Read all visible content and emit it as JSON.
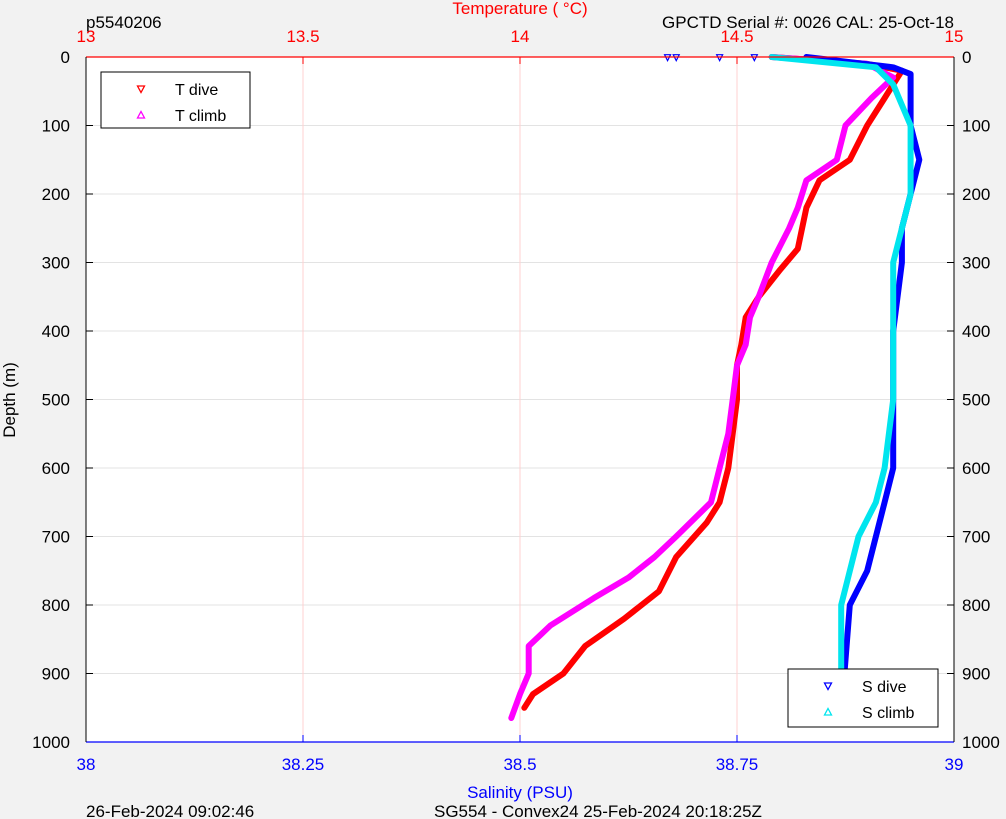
{
  "header": {
    "profile_id": "p5540206",
    "serial_info": "GPCTD Serial #: 0026 CAL: 25-Oct-18"
  },
  "footer": {
    "left_text": "26-Feb-2024 09:02:46",
    "center_text": "SG554 - Convex24 25-Feb-2024 20:18:25Z"
  },
  "chart_data": {
    "type": "line",
    "title": "",
    "top_axis": {
      "label": "Temperature (   °C)",
      "range": [
        13,
        15
      ],
      "ticks": [
        "13",
        "13.5",
        "14",
        "14.5",
        "15"
      ],
      "color": "#ff0000"
    },
    "bottom_axis": {
      "label": "Salinity (PSU)",
      "range": [
        38,
        39
      ],
      "ticks": [
        "38",
        "38.25",
        "38.5",
        "38.75",
        "39"
      ],
      "color": "#0000ff"
    },
    "y_axis": {
      "label": "Depth (m)",
      "range": [
        0,
        1000
      ],
      "reversed": true,
      "ticks": [
        "0",
        "100",
        "200",
        "300",
        "400",
        "500",
        "600",
        "700",
        "800",
        "900",
        "1000"
      ]
    },
    "grid": true,
    "legends": [
      {
        "placement": "top-left",
        "entries": [
          "T dive",
          "T climb"
        ]
      },
      {
        "placement": "bottom-right",
        "entries": [
          "S dive",
          "S climb"
        ]
      }
    ],
    "series": [
      {
        "name": "T dive",
        "axis": "temperature",
        "color": "#ff0000",
        "marker": "triangle-down",
        "x": [
          14.58,
          14.8,
          14.88,
          14.84,
          14.8,
          14.76,
          14.69,
          14.66,
          14.65,
          14.64,
          14.6,
          14.55,
          14.52,
          14.51,
          14.5,
          14.5,
          14.49,
          14.48,
          14.46,
          14.43,
          14.36,
          14.32,
          14.24,
          14.15,
          14.1,
          14.03,
          14.01
        ],
        "y": [
          0,
          10,
          20,
          60,
          100,
          150,
          180,
          220,
          250,
          280,
          310,
          350,
          380,
          420,
          450,
          500,
          550,
          600,
          650,
          680,
          730,
          780,
          820,
          860,
          900,
          930,
          950
        ]
      },
      {
        "name": "T climb",
        "axis": "temperature",
        "color": "#ff00ff",
        "marker": "triangle-up",
        "x": [
          14.58,
          14.8,
          14.86,
          14.81,
          14.75,
          14.73,
          14.66,
          14.64,
          14.62,
          14.58,
          14.55,
          14.53,
          14.52,
          14.5,
          14.49,
          14.48,
          14.46,
          14.44,
          14.36,
          14.31,
          14.25,
          14.17,
          14.07,
          14.02,
          14.02,
          14.0,
          13.98
        ],
        "y": [
          0,
          10,
          30,
          60,
          100,
          150,
          180,
          220,
          250,
          300,
          350,
          380,
          420,
          450,
          500,
          550,
          600,
          650,
          700,
          730,
          760,
          790,
          830,
          860,
          900,
          930,
          965
        ]
      },
      {
        "name": "S dive",
        "axis": "salinity",
        "color": "#0000ff",
        "marker": "triangle-down",
        "x": [
          38.83,
          38.93,
          38.95,
          38.95,
          38.95,
          38.96,
          38.95,
          38.94,
          38.94,
          38.93,
          38.93,
          38.93,
          38.93,
          38.92,
          38.91,
          38.9,
          38.88,
          38.875,
          38.87
        ],
        "y": [
          0,
          15,
          25,
          50,
          100,
          150,
          200,
          250,
          300,
          400,
          450,
          500,
          600,
          650,
          700,
          750,
          800,
          880,
          960
        ]
      },
      {
        "name": "S climb",
        "axis": "salinity",
        "color": "#00e5ee",
        "marker": "triangle-up",
        "x": [
          38.79,
          38.91,
          38.93,
          38.94,
          38.95,
          38.95,
          38.95,
          38.94,
          38.93,
          38.93,
          38.93,
          38.92,
          38.91,
          38.89,
          38.87,
          38.87,
          38.87
        ],
        "y": [
          0,
          15,
          40,
          70,
          100,
          150,
          200,
          250,
          300,
          400,
          500,
          600,
          650,
          700,
          800,
          880,
          965
        ]
      }
    ],
    "outliers": {
      "axis": "salinity",
      "color": "#0000ff",
      "x": [
        38.67,
        38.68,
        38.73,
        38.77
      ],
      "y": [
        1,
        1,
        1,
        1
      ]
    }
  }
}
